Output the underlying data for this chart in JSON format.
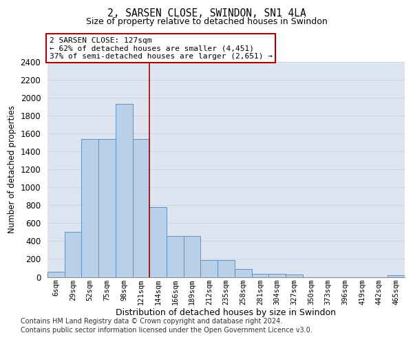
{
  "title": "2, SARSEN CLOSE, SWINDON, SN1 4LA",
  "subtitle": "Size of property relative to detached houses in Swindon",
  "xlabel": "Distribution of detached houses by size in Swindon",
  "ylabel": "Number of detached properties",
  "categories": [
    "6sqm",
    "29sqm",
    "52sqm",
    "75sqm",
    "98sqm",
    "121sqm",
    "144sqm",
    "166sqm",
    "189sqm",
    "212sqm",
    "235sqm",
    "258sqm",
    "281sqm",
    "304sqm",
    "327sqm",
    "350sqm",
    "373sqm",
    "396sqm",
    "419sqm",
    "442sqm",
    "465sqm"
  ],
  "values": [
    60,
    500,
    1540,
    1540,
    1930,
    1540,
    780,
    460,
    460,
    185,
    185,
    90,
    35,
    35,
    25,
    0,
    0,
    0,
    0,
    0,
    20
  ],
  "bar_color": "#b8d0e8",
  "bar_edge_color": "#6090c0",
  "property_line_index": 5,
  "annotation_title": "2 SARSEN CLOSE: 127sqm",
  "annotation_line1": "← 62% of detached houses are smaller (4,451)",
  "annotation_line2": "37% of semi-detached houses are larger (2,651) →",
  "vline_color": "#aa0000",
  "box_edge_color": "#aa0000",
  "ylim": [
    0,
    2400
  ],
  "yticks": [
    0,
    200,
    400,
    600,
    800,
    1000,
    1200,
    1400,
    1600,
    1800,
    2000,
    2200,
    2400
  ],
  "grid_color": "#c8d4e4",
  "plot_bg_color": "#dde5f0",
  "footer_line1": "Contains HM Land Registry data © Crown copyright and database right 2024.",
  "footer_line2": "Contains public sector information licensed under the Open Government Licence v3.0."
}
